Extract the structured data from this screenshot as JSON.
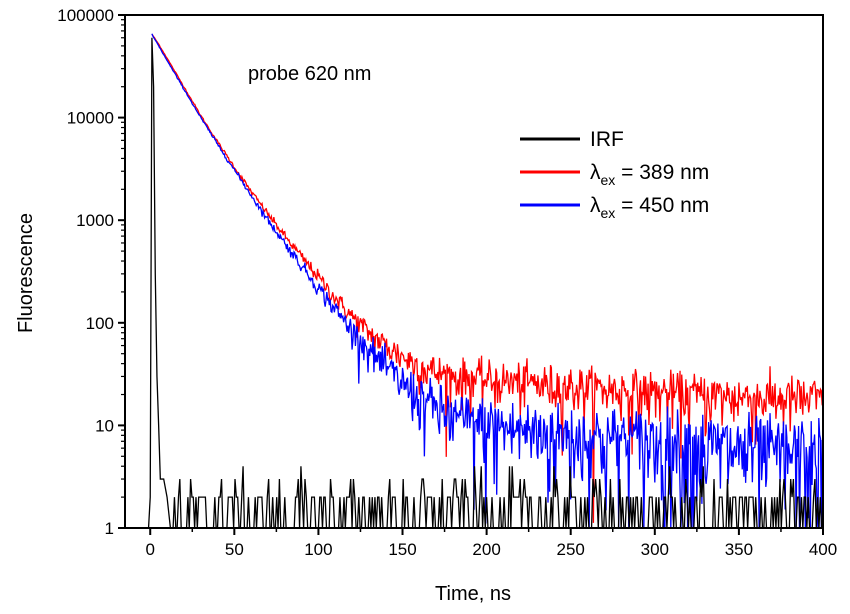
{
  "chart_data": {
    "type": "line",
    "title": "",
    "xlabel": "Time, ns",
    "ylabel": "Fluorescence",
    "yscale": "log",
    "xlim": [
      -15,
      400
    ],
    "ylim": [
      1,
      100000
    ],
    "x_ticks": [
      0,
      50,
      100,
      150,
      200,
      250,
      300,
      350,
      400
    ],
    "x_tick_labels": [
      "0",
      "50",
      "100",
      "150",
      "200",
      "250",
      "300",
      "350",
      "400"
    ],
    "y_ticks": [
      1,
      10,
      100,
      1000,
      10000,
      100000
    ],
    "y_tick_labels": [
      "1",
      "10",
      "100",
      "1000",
      "10000",
      "100000"
    ],
    "grid": false,
    "legend_position": "right",
    "annotation": "probe 620 nm",
    "series": [
      {
        "name": "IRF",
        "legend_label": "IRF",
        "color": "#000000",
        "points": [
          [
            -1,
            1
          ],
          [
            0,
            2
          ],
          [
            1,
            60000
          ],
          [
            2,
            20000
          ],
          [
            3,
            300
          ],
          [
            4,
            30
          ],
          [
            5,
            10
          ],
          [
            6,
            3
          ],
          [
            8,
            3
          ],
          [
            10,
            2
          ],
          [
            12,
            2
          ],
          [
            400,
            2
          ]
        ],
        "noise": "shot-noise baseline fluctuating between 1 and 4 counts"
      },
      {
        "name": "λex = 389 nm",
        "legend_main": "λ",
        "legend_sub": "ex",
        "legend_rest": " = 389 nm",
        "color": "#ff0000",
        "points": [
          [
            1,
            65000
          ],
          [
            5,
            52000
          ],
          [
            10,
            38000
          ],
          [
            20,
            20000
          ],
          [
            30,
            10500
          ],
          [
            40,
            5800
          ],
          [
            50,
            3300
          ],
          [
            60,
            1900
          ],
          [
            70,
            1150
          ],
          [
            80,
            700
          ],
          [
            90,
            440
          ],
          [
            100,
            280
          ],
          [
            110,
            175
          ],
          [
            120,
            115
          ],
          [
            130,
            80
          ],
          [
            140,
            60
          ],
          [
            150,
            47
          ],
          [
            160,
            38
          ],
          [
            170,
            33
          ],
          [
            180,
            30
          ],
          [
            200,
            28
          ],
          [
            250,
            24
          ],
          [
            300,
            21
          ],
          [
            350,
            19
          ],
          [
            400,
            18
          ]
        ]
      },
      {
        "name": "λex = 450 nm",
        "legend_main": "λ",
        "legend_sub": "ex",
        "legend_rest": " = 450 nm",
        "color": "#0000ff",
        "points": [
          [
            1,
            65000
          ],
          [
            5,
            50000
          ],
          [
            10,
            36000
          ],
          [
            20,
            19000
          ],
          [
            30,
            10000
          ],
          [
            40,
            5500
          ],
          [
            50,
            3100
          ],
          [
            60,
            1750
          ],
          [
            70,
            1000
          ],
          [
            80,
            600
          ],
          [
            90,
            360
          ],
          [
            100,
            220
          ],
          [
            110,
            135
          ],
          [
            120,
            85
          ],
          [
            130,
            55
          ],
          [
            140,
            37
          ],
          [
            150,
            26
          ],
          [
            160,
            19
          ],
          [
            170,
            15
          ],
          [
            180,
            12
          ],
          [
            200,
            10
          ],
          [
            250,
            8
          ],
          [
            300,
            7
          ],
          [
            350,
            6
          ],
          [
            400,
            5
          ]
        ]
      }
    ]
  }
}
